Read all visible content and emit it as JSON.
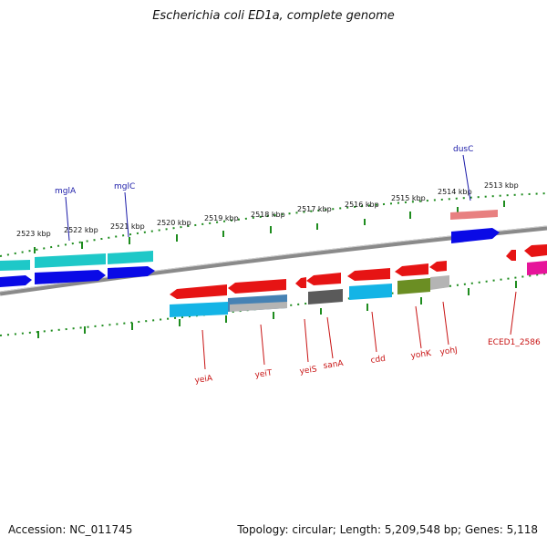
{
  "title": "Escherichia coli ED1a, complete genome",
  "footer": {
    "accession": "Accession: NC_011745",
    "summary": "Topology: circular; Length: 5,209,548 bp; Genes: 5,118"
  },
  "colors": {
    "backbone": "#8a8a8a",
    "ticks": "#1e8c1e",
    "label_forward": "#1a1aa8",
    "label_reverse": "#c81414",
    "forward_gene": "#0a0ae6",
    "forward_cyan": "#1ec8c8",
    "reverse_gene": "#e61414",
    "reverse_cyan": "#14b4e6",
    "reverse_steel": "#4682b4",
    "reverse_gray": "#b4b4b4",
    "reverse_dark": "#5a5a5a",
    "reverse_olive": "#6b8e23",
    "salmon": "#e88080",
    "magenta": "#e6149a"
  },
  "kbp_ticks": [
    "2523 kbp",
    "2522 kbp",
    "2521 kbp",
    "2520 kbp",
    "2519 kbp",
    "2518 kbp",
    "2517 kbp",
    "2516 kbp",
    "2515 kbp",
    "2514 kbp",
    "2513 kbp"
  ],
  "forward_labels": [
    "mglA",
    "mglC",
    "dusC"
  ],
  "reverse_labels": [
    "yeiA",
    "yeiT",
    "yeiS",
    "sanA",
    "cdd",
    "yohK",
    "yohJ",
    "ECED1_2586"
  ]
}
